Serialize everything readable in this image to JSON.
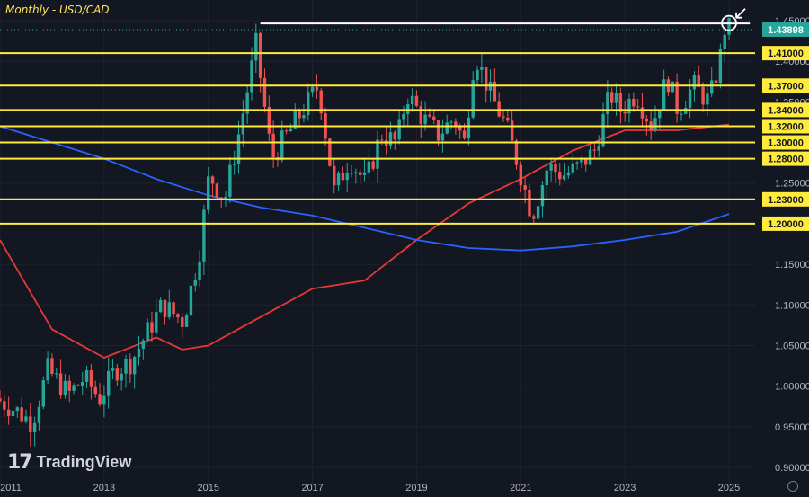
{
  "header": {
    "title": "Monthly - USD/CAD"
  },
  "branding": {
    "logo_text": "TradingView",
    "logo_mark": "17"
  },
  "colors": {
    "background": "#131722",
    "bull": "#26a69a",
    "bear": "#ef5350",
    "level_line": "#ffeb3b",
    "ma_fast": "#e53935",
    "ma_slow": "#2962ff",
    "last_price_badge": "#26a69a"
  },
  "icons": {
    "settings": "gear-icon",
    "annotation_arrow": "arrow-icon",
    "highlight": "circle-marker-icon"
  },
  "chart_data": {
    "type": "candlestick",
    "title": "Monthly - USD/CAD",
    "xlabel": "",
    "ylabel": "",
    "x_ticks": [
      "2011",
      "2013",
      "2015",
      "2017",
      "2019",
      "2021",
      "2023",
      "2025"
    ],
    "y_ticks": [
      "1.45000",
      "1.40000",
      "1.35000",
      "1.30000",
      "1.25000",
      "1.20000",
      "1.15000",
      "1.10000",
      "1.05000",
      "1.00000",
      "0.95000",
      "0.90000"
    ],
    "ylim": [
      0.89,
      1.475
    ],
    "xlim": [
      2011.0,
      2025.5
    ],
    "grid": true,
    "last_price": "1.43898",
    "horizontal_levels": [
      {
        "value": 1.41,
        "label": "1.41000"
      },
      {
        "value": 1.37,
        "label": "1.37000"
      },
      {
        "value": 1.34,
        "label": "1.34000"
      },
      {
        "value": 1.32,
        "label": "1.32000"
      },
      {
        "value": 1.3,
        "label": "1.30000"
      },
      {
        "value": 1.28,
        "label": "1.28000"
      },
      {
        "value": 1.23,
        "label": "1.23000"
      },
      {
        "value": 1.2,
        "label": "1.20000"
      }
    ],
    "resistance_line": {
      "value": 1.4465,
      "from": 2016.0,
      "to": 2025.4
    },
    "candle_path": [
      [
        2011.0,
        0.985
      ],
      [
        2011.4,
        0.97
      ],
      [
        2011.7,
        0.955
      ],
      [
        2012.0,
        1.02
      ],
      [
        2012.4,
        0.99
      ],
      [
        2012.7,
        1.01
      ],
      [
        2013.0,
        0.985
      ],
      [
        2013.3,
        1.02
      ],
      [
        2013.6,
        1.03
      ],
      [
        2013.9,
        1.065
      ],
      [
        2014.2,
        1.1
      ],
      [
        2014.6,
        1.08
      ],
      [
        2014.9,
        1.16
      ],
      [
        2015.1,
        1.26
      ],
      [
        2015.4,
        1.23
      ],
      [
        2015.7,
        1.32
      ],
      [
        2016.0,
        1.42
      ],
      [
        2016.3,
        1.28
      ],
      [
        2016.6,
        1.31
      ],
      [
        2016.9,
        1.34
      ],
      [
        2017.2,
        1.37
      ],
      [
        2017.5,
        1.24
      ],
      [
        2017.8,
        1.28
      ],
      [
        2018.1,
        1.25
      ],
      [
        2018.4,
        1.31
      ],
      [
        2018.7,
        1.3
      ],
      [
        2018.9,
        1.36
      ],
      [
        2019.2,
        1.33
      ],
      [
        2019.5,
        1.31
      ],
      [
        2019.8,
        1.33
      ],
      [
        2020.0,
        1.3
      ],
      [
        2020.2,
        1.41
      ],
      [
        2020.5,
        1.36
      ],
      [
        2020.8,
        1.32
      ],
      [
        2021.0,
        1.28
      ],
      [
        2021.3,
        1.21
      ],
      [
        2021.6,
        1.27
      ],
      [
        2021.9,
        1.26
      ],
      [
        2022.2,
        1.27
      ],
      [
        2022.5,
        1.29
      ],
      [
        2022.8,
        1.36
      ],
      [
        2023.0,
        1.34
      ],
      [
        2023.3,
        1.36
      ],
      [
        2023.6,
        1.32
      ],
      [
        2023.9,
        1.38
      ],
      [
        2024.1,
        1.34
      ],
      [
        2024.4,
        1.37
      ],
      [
        2024.7,
        1.35
      ],
      [
        2024.9,
        1.4
      ],
      [
        2025.0,
        1.44
      ]
    ],
    "series": [
      {
        "type": "moving_average",
        "points": [
          [
            2011.0,
            1.18
          ],
          [
            2012.0,
            1.07
          ],
          [
            2013.0,
            1.035
          ],
          [
            2014.0,
            1.06
          ],
          [
            2014.5,
            1.045
          ],
          [
            2015.0,
            1.05
          ],
          [
            2016.0,
            1.085
          ],
          [
            2017.0,
            1.12
          ],
          [
            2018.0,
            1.13
          ],
          [
            2019.0,
            1.18
          ],
          [
            2020.0,
            1.225
          ],
          [
            2021.0,
            1.255
          ],
          [
            2022.0,
            1.29
          ],
          [
            2023.0,
            1.315
          ],
          [
            2024.0,
            1.315
          ],
          [
            2025.0,
            1.322
          ]
        ]
      },
      {
        "type": "moving_average",
        "points": [
          [
            2011.0,
            1.32
          ],
          [
            2012.0,
            1.3
          ],
          [
            2013.0,
            1.28
          ],
          [
            2014.0,
            1.255
          ],
          [
            2015.0,
            1.235
          ],
          [
            2016.0,
            1.22
          ],
          [
            2017.0,
            1.21
          ],
          [
            2018.0,
            1.195
          ],
          [
            2019.0,
            1.18
          ],
          [
            2020.0,
            1.17
          ],
          [
            2021.0,
            1.167
          ],
          [
            2022.0,
            1.172
          ],
          [
            2023.0,
            1.18
          ],
          [
            2024.0,
            1.19
          ],
          [
            2025.0,
            1.212
          ]
        ]
      }
    ]
  }
}
